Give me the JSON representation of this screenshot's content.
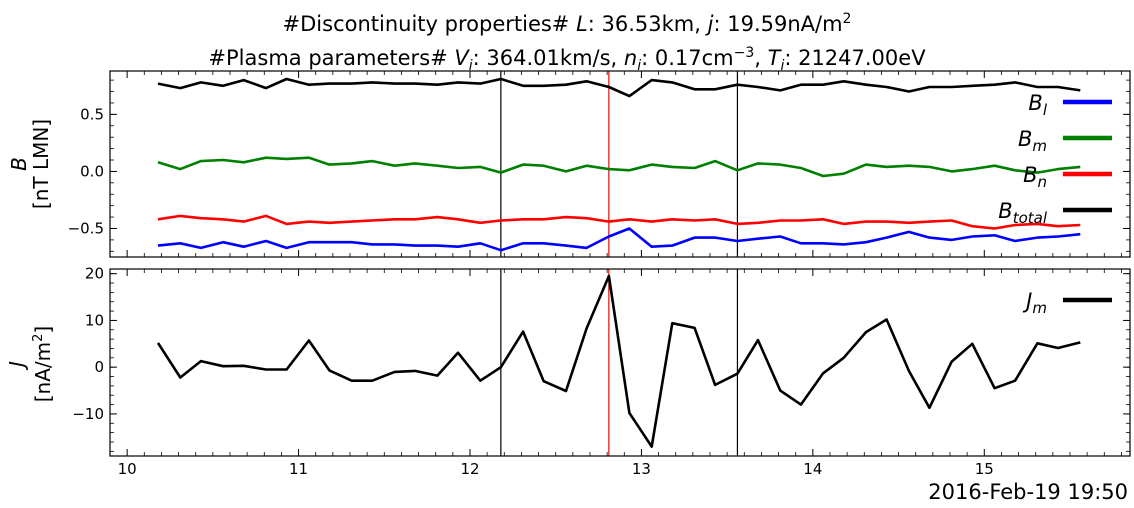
{
  "title": {
    "line1": {
      "pre": "#Discontinuity properties# ",
      "L_sym": "L",
      "L_val": ": 36.53km, ",
      "j_sym": "j",
      "j_val": ": 19.59nA/m",
      "j_exp": "2"
    },
    "line2": {
      "pre": "#Plasma parameters# ",
      "V_sym": "V",
      "V_sub": "i",
      "V_val": ": 364.01km/s, ",
      "n_sym": "n",
      "n_sub": "i",
      "n_val": ": 0.17cm",
      "n_exp": "−3",
      "n_sep": ", ",
      "T_sym": "T",
      "T_sub": "i",
      "T_val": ": 21247.00eV"
    }
  },
  "timestamp": "2016-Feb-19 19:50",
  "chart_data": [
    {
      "type": "line",
      "panel": "top",
      "ylabel_sym": "B",
      "ylabel_unit": "[nT LMN]",
      "ylim": [
        -0.75,
        0.88
      ],
      "xlim": [
        9.9,
        15.85
      ],
      "yticks": [
        -0.5,
        0.0,
        0.5
      ],
      "ytick_labels": [
        "−0.5",
        "0.0",
        "0.5"
      ],
      "x": [
        10.18,
        10.31,
        10.43,
        10.56,
        10.68,
        10.81,
        10.93,
        11.06,
        11.18,
        11.31,
        11.43,
        11.56,
        11.68,
        11.81,
        11.93,
        12.06,
        12.18,
        12.31,
        12.43,
        12.56,
        12.68,
        12.81,
        12.93,
        13.06,
        13.18,
        13.31,
        13.43,
        13.56,
        13.68,
        13.81,
        13.93,
        14.06,
        14.18,
        14.31,
        14.43,
        14.56,
        14.68,
        14.81,
        14.93,
        15.06,
        15.18,
        15.31,
        15.43,
        15.56
      ],
      "series": [
        {
          "name": "B",
          "sub": "l",
          "color": "#0000ff",
          "values": [
            -0.65,
            -0.63,
            -0.67,
            -0.62,
            -0.66,
            -0.61,
            -0.67,
            -0.62,
            -0.62,
            -0.62,
            -0.64,
            -0.64,
            -0.65,
            -0.65,
            -0.66,
            -0.63,
            -0.69,
            -0.63,
            -0.63,
            -0.65,
            -0.67,
            -0.57,
            -0.5,
            -0.66,
            -0.65,
            -0.58,
            -0.58,
            -0.61,
            -0.59,
            -0.57,
            -0.63,
            -0.63,
            -0.64,
            -0.62,
            -0.58,
            -0.53,
            -0.58,
            -0.6,
            -0.57,
            -0.56,
            -0.61,
            -0.58,
            -0.57,
            -0.55
          ]
        },
        {
          "name": "B",
          "sub": "m",
          "color": "#008000",
          "values": [
            0.08,
            0.02,
            0.09,
            0.1,
            0.08,
            0.12,
            0.11,
            0.12,
            0.06,
            0.07,
            0.09,
            0.05,
            0.07,
            0.05,
            0.03,
            0.04,
            -0.01,
            0.06,
            0.05,
            0.0,
            0.05,
            0.02,
            0.01,
            0.06,
            0.04,
            0.03,
            0.09,
            0.01,
            0.07,
            0.06,
            0.03,
            -0.04,
            -0.02,
            0.06,
            0.04,
            0.05,
            0.04,
            0.0,
            0.02,
            0.05,
            0.01,
            -0.01,
            0.02,
            0.04
          ]
        },
        {
          "name": "B",
          "sub": "n",
          "color": "#ff0000",
          "values": [
            -0.42,
            -0.39,
            -0.41,
            -0.42,
            -0.44,
            -0.39,
            -0.46,
            -0.44,
            -0.45,
            -0.44,
            -0.43,
            -0.42,
            -0.42,
            -0.4,
            -0.42,
            -0.45,
            -0.43,
            -0.42,
            -0.42,
            -0.4,
            -0.41,
            -0.44,
            -0.42,
            -0.44,
            -0.42,
            -0.43,
            -0.42,
            -0.46,
            -0.45,
            -0.43,
            -0.43,
            -0.42,
            -0.46,
            -0.44,
            -0.44,
            -0.45,
            -0.44,
            -0.43,
            -0.48,
            -0.5,
            -0.47,
            -0.46,
            -0.48,
            -0.47
          ]
        },
        {
          "name": "B",
          "sub": "total",
          "color": "#000000",
          "values": [
            0.77,
            0.73,
            0.78,
            0.75,
            0.8,
            0.73,
            0.81,
            0.76,
            0.77,
            0.77,
            0.78,
            0.77,
            0.77,
            0.76,
            0.78,
            0.77,
            0.81,
            0.75,
            0.75,
            0.76,
            0.79,
            0.74,
            0.66,
            0.8,
            0.78,
            0.72,
            0.72,
            0.76,
            0.74,
            0.71,
            0.76,
            0.76,
            0.79,
            0.76,
            0.74,
            0.7,
            0.74,
            0.74,
            0.75,
            0.76,
            0.78,
            0.74,
            0.74,
            0.71
          ]
        }
      ],
      "vlines": [
        {
          "x": 12.18,
          "color": "#000000"
        },
        {
          "x": 12.81,
          "color": "#ff0000"
        },
        {
          "x": 13.56,
          "color": "#000000"
        }
      ]
    },
    {
      "type": "line",
      "panel": "bottom",
      "ylabel_sym": "J",
      "ylabel_unit_pre": "[nA/m",
      "ylabel_unit_exp": "2",
      "ylabel_unit_post": "]",
      "ylim": [
        -19,
        21
      ],
      "xlim": [
        9.9,
        15.85
      ],
      "yticks": [
        -10,
        0,
        10,
        20
      ],
      "ytick_labels": [
        "−10",
        "0",
        "10",
        "20"
      ],
      "xticks": [
        10,
        11,
        12,
        13,
        14,
        15
      ],
      "xtick_labels": [
        "10",
        "11",
        "12",
        "13",
        "14",
        "15"
      ],
      "x": [
        10.18,
        10.31,
        10.43,
        10.56,
        10.68,
        10.81,
        10.93,
        11.06,
        11.18,
        11.31,
        11.43,
        11.56,
        11.68,
        11.81,
        11.93,
        12.06,
        12.18,
        12.31,
        12.43,
        12.56,
        12.68,
        12.81,
        12.93,
        13.06,
        13.18,
        13.31,
        13.43,
        13.56,
        13.68,
        13.81,
        13.93,
        14.06,
        14.18,
        14.31,
        14.43,
        14.56,
        14.68,
        14.81,
        14.93,
        15.06,
        15.18,
        15.31,
        15.43,
        15.56
      ],
      "series": [
        {
          "name": "J",
          "sub": "m",
          "color": "#000000",
          "values": [
            5.2,
            -2.2,
            1.3,
            0.2,
            0.3,
            -0.5,
            -0.5,
            5.7,
            -0.7,
            -2.9,
            -2.9,
            -1.0,
            -0.8,
            -1.8,
            3.1,
            -2.9,
            0.0,
            7.6,
            -3.0,
            -5.1,
            8.3,
            19.5,
            -9.8,
            -17.0,
            9.4,
            8.4,
            -3.8,
            -1.4,
            5.8,
            -5.0,
            -8.0,
            -1.3,
            2.0,
            7.5,
            10.2,
            -0.8,
            -8.7,
            1.2,
            5.0,
            -4.5,
            -2.9,
            5.1,
            4.1,
            5.3
          ]
        }
      ],
      "vlines": [
        {
          "x": 12.18,
          "color": "#000000"
        },
        {
          "x": 12.81,
          "color": "#ff0000"
        },
        {
          "x": 13.56,
          "color": "#000000"
        }
      ]
    }
  ]
}
